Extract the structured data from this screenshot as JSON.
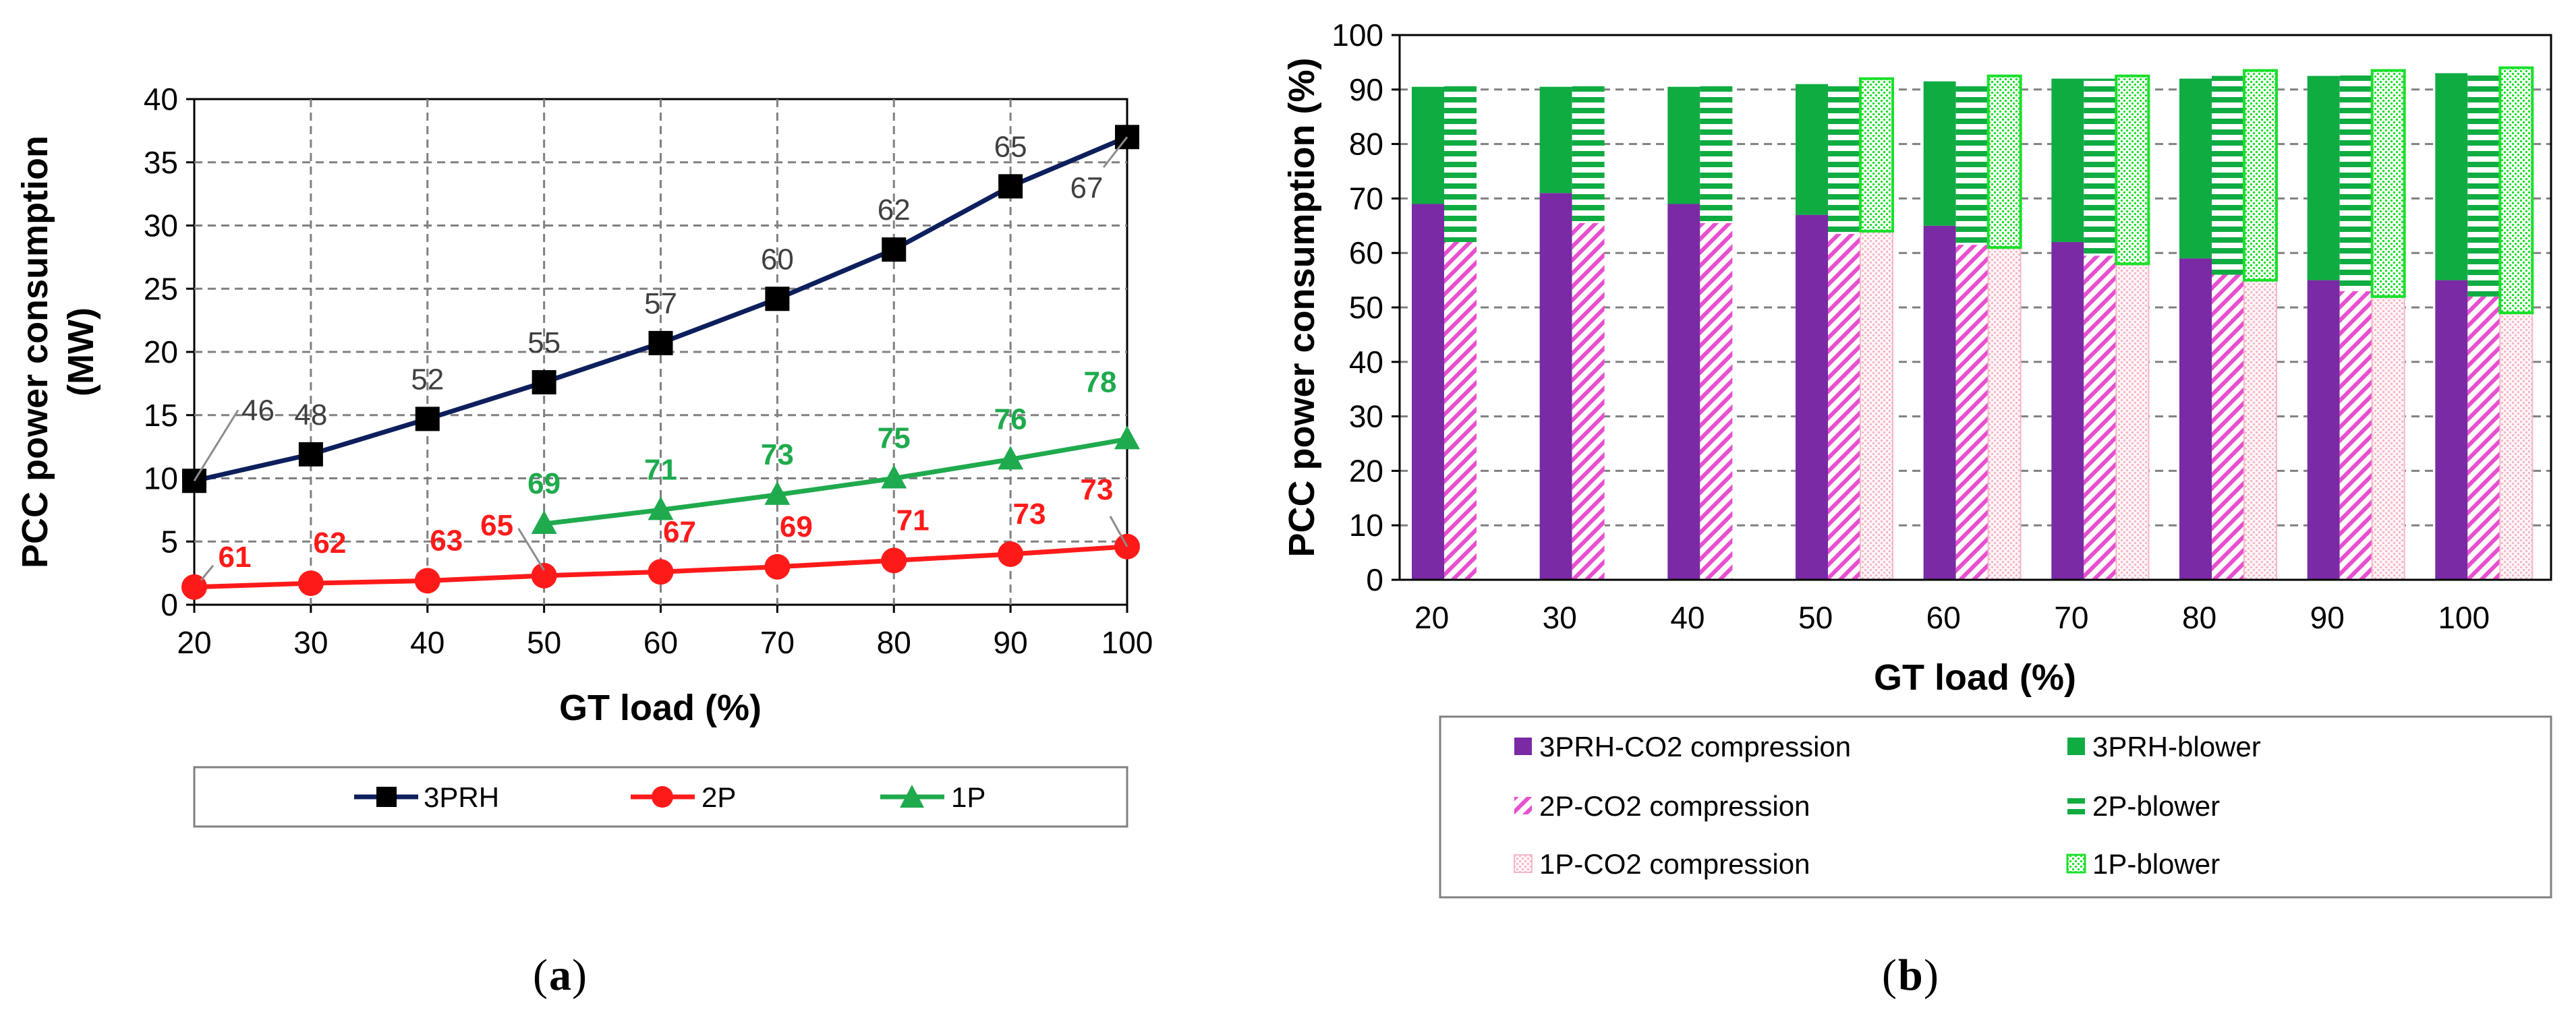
{
  "chart_data": [
    {
      "id": "a",
      "caption_letter": "a",
      "type": "line",
      "xlabel": "GT load (%)",
      "ylabel_lines": [
        "PCC power consumption",
        "(MW)"
      ],
      "x_ticks": [
        "20",
        "30",
        "40",
        "50",
        "60",
        "70",
        "80",
        "90",
        "100"
      ],
      "y_ticks": [
        "0",
        "5",
        "10",
        "15",
        "20",
        "25",
        "30",
        "35",
        "40"
      ],
      "xlim": [
        20,
        100
      ],
      "ylim": [
        0,
        40
      ],
      "grid": true,
      "legend_position": "bottom",
      "series": [
        {
          "name": "3PRH",
          "color": "#0d1f5c",
          "label_color": "#404040",
          "marker": "square",
          "x": [
            20,
            30,
            40,
            50,
            60,
            70,
            80,
            90,
            100
          ],
          "y": [
            9.8,
            11.9,
            14.7,
            17.6,
            20.7,
            24.2,
            28.1,
            33.1,
            37.0
          ],
          "labels": [
            "46",
            "48",
            "52",
            "55",
            "57",
            "60",
            "62",
            "65",
            "67"
          ]
        },
        {
          "name": "2P",
          "color": "#ff1a1a",
          "label_color": "#ff1a1a",
          "marker": "circle",
          "x": [
            20,
            30,
            40,
            50,
            60,
            70,
            80,
            90,
            100
          ],
          "y": [
            1.4,
            1.7,
            1.9,
            2.3,
            2.6,
            3.0,
            3.5,
            4.0,
            4.6
          ],
          "labels": [
            "61",
            "62",
            "63",
            "65",
            "67",
            "69",
            "71",
            "73",
            "73"
          ]
        },
        {
          "name": "1P",
          "color": "#1faa4d",
          "label_color": "#1faa4d",
          "marker": "triangle",
          "x": [
            50,
            60,
            70,
            80,
            90,
            100
          ],
          "y": [
            6.4,
            7.5,
            8.7,
            10.0,
            11.5,
            13.1
          ],
          "labels": [
            "69",
            "71",
            "73",
            "75",
            "76",
            "78"
          ]
        }
      ]
    },
    {
      "id": "b",
      "caption_letter": "b",
      "type": "bar",
      "stacked": true,
      "xlabel": "GT load (%)",
      "ylabel": "PCC power consumption  (%)",
      "categories": [
        "20",
        "30",
        "40",
        "50",
        "60",
        "70",
        "80",
        "90",
        "100"
      ],
      "y_ticks": [
        "0",
        "10",
        "20",
        "30",
        "40",
        "50",
        "60",
        "70",
        "80",
        "90",
        "100"
      ],
      "ylim": [
        0,
        100
      ],
      "grid": true,
      "legend_position": "bottom",
      "configurations": [
        {
          "name": "3PRH",
          "compression": [
            69,
            71,
            69,
            67,
            65,
            62,
            59,
            55,
            55
          ],
          "blower": [
            21.5,
            19.5,
            21.5,
            24,
            26.5,
            30,
            33,
            37.5,
            38
          ]
        },
        {
          "name": "2P",
          "compression": [
            62,
            65.5,
            65.5,
            63.5,
            61.5,
            59.5,
            56,
            53,
            52
          ],
          "blower": [
            29.5,
            26,
            26,
            28,
            30,
            32.5,
            36.5,
            40,
            41.5
          ]
        },
        {
          "name": "1P",
          "compression": [
            null,
            null,
            null,
            64,
            61,
            58,
            55,
            52,
            49
          ],
          "blower": [
            null,
            null,
            null,
            28,
            31.5,
            34.5,
            38.5,
            41.5,
            45
          ]
        }
      ],
      "legend": [
        {
          "label": "3PRH-CO2 compression",
          "swatch": "purple-solid"
        },
        {
          "label": "3PRH-blower",
          "swatch": "green-solid"
        },
        {
          "label": "2P-CO2 compression",
          "swatch": "pink-diagonal"
        },
        {
          "label": "2P-blower",
          "swatch": "green-horizontal"
        },
        {
          "label": "1P-CO2 compression",
          "swatch": "pink-dotted"
        },
        {
          "label": "1P-blower",
          "swatch": "green-outline-dotted"
        }
      ],
      "colors": {
        "purple": "#7a2aa5",
        "green": "#0fac42",
        "pink": "#e84fd0",
        "light_pink": "#f5b8c8",
        "bright_green": "#19e02a"
      }
    }
  ]
}
